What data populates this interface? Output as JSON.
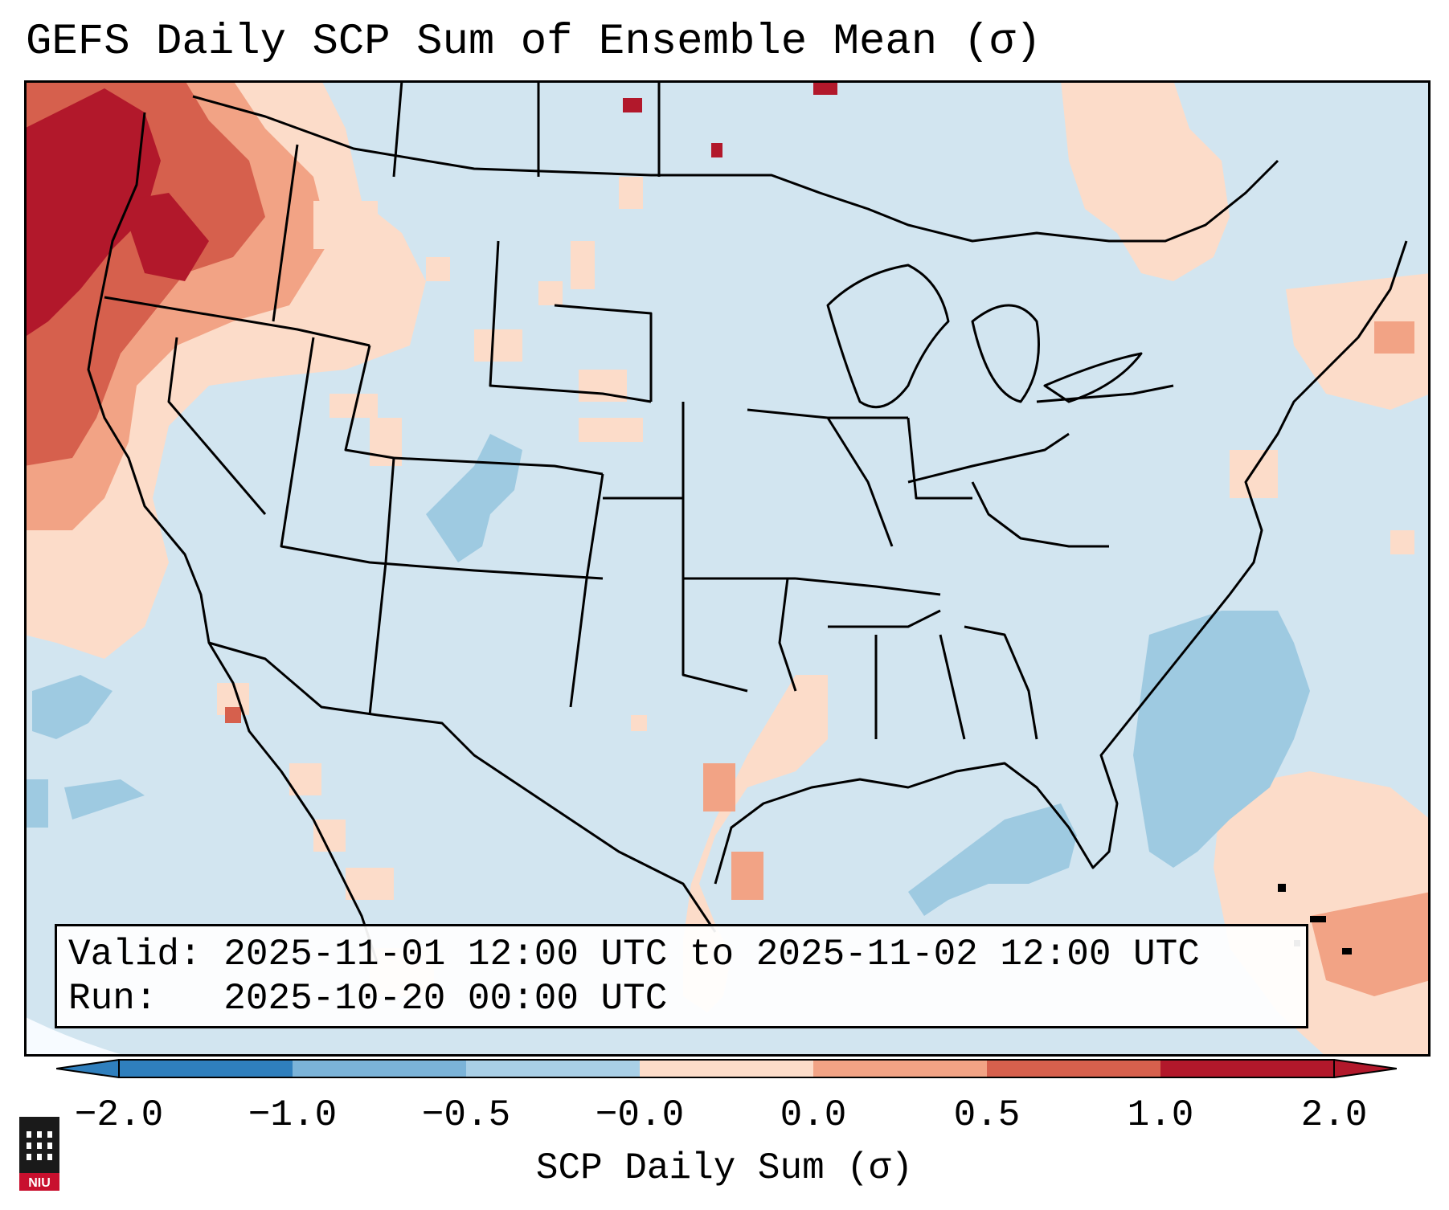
{
  "title": "GEFS Daily SCP Sum of Ensemble Mean (σ)",
  "info": {
    "valid_label": "Valid:",
    "valid_value": "2025-11-01 12:00 UTC to 2025-11-02 12:00 UTC",
    "run_label": "Run:",
    "run_value": "2025-10-20 00:00 UTC"
  },
  "colorbar": {
    "title": "SCP Daily Sum (σ)",
    "ticks": [
      "−2.0",
      "−1.0",
      "−0.5",
      "−0.0",
      "0.0",
      "0.5",
      "1.0",
      "2.0"
    ],
    "colors": [
      "#2f7fbd",
      "#7bb3d8",
      "#a9cfe6",
      "#d2e5f0",
      "#fcdcc9",
      "#f2a385",
      "#d6604d",
      "#b2182b"
    ]
  },
  "logo": {
    "text": "NIU"
  },
  "colors": {
    "background_field": "#d2e5f0",
    "ocean_outside": "#f7fbff"
  }
}
